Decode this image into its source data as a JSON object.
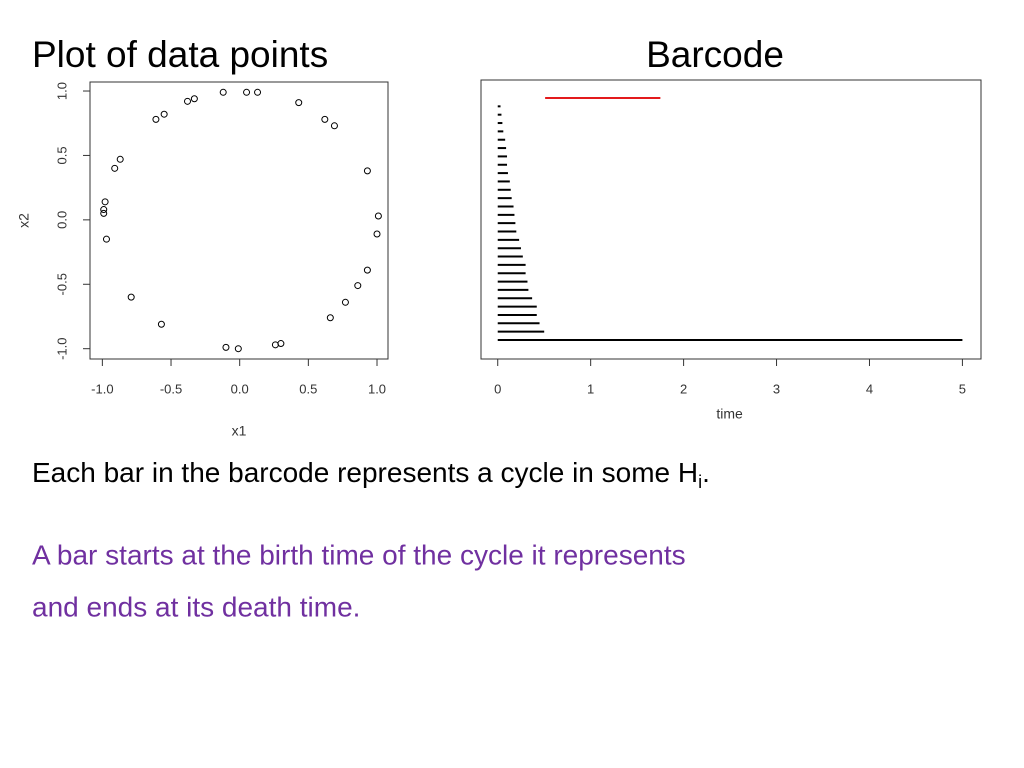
{
  "chart_data": [
    {
      "type": "scatter",
      "title": "Plot of data points",
      "xlabel": "x1",
      "ylabel": "x2",
      "x": [
        -0.12,
        0.05,
        0.13,
        -0.33,
        -0.38,
        0.43,
        -0.55,
        -0.61,
        0.62,
        0.69,
        -0.87,
        -0.91,
        0.93,
        -0.98,
        -0.99,
        -0.99,
        1.01,
        1.0,
        -0.97,
        0.93,
        0.86,
        0.77,
        -0.79,
        0.66,
        -0.57,
        -0.1,
        -0.01,
        0.26,
        0.3
      ],
      "y": [
        0.99,
        0.99,
        0.99,
        0.94,
        0.92,
        0.91,
        0.82,
        0.78,
        0.78,
        0.73,
        0.47,
        0.4,
        0.38,
        0.14,
        0.08,
        0.05,
        0.03,
        -0.11,
        -0.15,
        -0.39,
        -0.51,
        -0.64,
        -0.6,
        -0.76,
        -0.81,
        -0.99,
        -1.0,
        -0.97,
        -0.96
      ],
      "xlim": [
        -1.09,
        1.08
      ],
      "ylim": [
        -1.08,
        1.07
      ],
      "xticks": [
        {
          "value": -1,
          "label": "-1.0"
        },
        {
          "value": -0.5,
          "label": "-0.5"
        },
        {
          "value": 0,
          "label": "0.0"
        },
        {
          "value": 0.5,
          "label": "0.5"
        },
        {
          "value": 1,
          "label": "1.0"
        }
      ],
      "yticks": [
        {
          "value": -1,
          "label": "-1.0"
        },
        {
          "value": -0.5,
          "label": "-0.5"
        },
        {
          "value": 0,
          "label": "0.0"
        },
        {
          "value": 0.5,
          "label": "0.5"
        },
        {
          "value": 1,
          "label": "1.0"
        }
      ]
    },
    {
      "type": "barcode",
      "title": "Barcode",
      "xlabel": "time",
      "intervals": [
        {
          "start": 0.51,
          "end": 1.75,
          "color": "#e31a1c"
        },
        {
          "start": 0,
          "end": 0.03,
          "color": "#000000"
        },
        {
          "start": 0,
          "end": 0.04,
          "color": "#000000"
        },
        {
          "start": 0,
          "end": 0.05,
          "color": "#000000"
        },
        {
          "start": 0,
          "end": 0.06,
          "color": "#000000"
        },
        {
          "start": 0,
          "end": 0.08,
          "color": "#000000"
        },
        {
          "start": 0,
          "end": 0.09,
          "color": "#000000"
        },
        {
          "start": 0,
          "end": 0.1,
          "color": "#000000"
        },
        {
          "start": 0,
          "end": 0.1,
          "color": "#000000"
        },
        {
          "start": 0,
          "end": 0.11,
          "color": "#000000"
        },
        {
          "start": 0,
          "end": 0.13,
          "color": "#000000"
        },
        {
          "start": 0,
          "end": 0.14,
          "color": "#000000"
        },
        {
          "start": 0,
          "end": 0.15,
          "color": "#000000"
        },
        {
          "start": 0,
          "end": 0.17,
          "color": "#000000"
        },
        {
          "start": 0,
          "end": 0.18,
          "color": "#000000"
        },
        {
          "start": 0,
          "end": 0.19,
          "color": "#000000"
        },
        {
          "start": 0,
          "end": 0.2,
          "color": "#000000"
        },
        {
          "start": 0,
          "end": 0.23,
          "color": "#000000"
        },
        {
          "start": 0,
          "end": 0.25,
          "color": "#000000"
        },
        {
          "start": 0,
          "end": 0.27,
          "color": "#000000"
        },
        {
          "start": 0,
          "end": 0.3,
          "color": "#000000"
        },
        {
          "start": 0,
          "end": 0.3,
          "color": "#000000"
        },
        {
          "start": 0,
          "end": 0.32,
          "color": "#000000"
        },
        {
          "start": 0,
          "end": 0.33,
          "color": "#000000"
        },
        {
          "start": 0,
          "end": 0.37,
          "color": "#000000"
        },
        {
          "start": 0,
          "end": 0.42,
          "color": "#000000"
        },
        {
          "start": 0,
          "end": 0.42,
          "color": "#000000"
        },
        {
          "start": 0,
          "end": 0.45,
          "color": "#000000"
        },
        {
          "start": 0,
          "end": 0.5,
          "color": "#000000"
        },
        {
          "start": 0,
          "end": 5,
          "color": "#000000"
        }
      ],
      "xlim": [
        -0.18,
        5.2
      ],
      "xticks": [
        0,
        1,
        2,
        3,
        4,
        5
      ]
    }
  ],
  "body": {
    "line1": {
      "text": "Each bar in the barcode represents a cycle in some H",
      "subscript": "i",
      "end": "."
    },
    "line2": {
      "color": "#7030a0",
      "lines": [
        "A bar starts at the birth time of the cycle it represents",
        "and ends at its death time."
      ]
    }
  }
}
